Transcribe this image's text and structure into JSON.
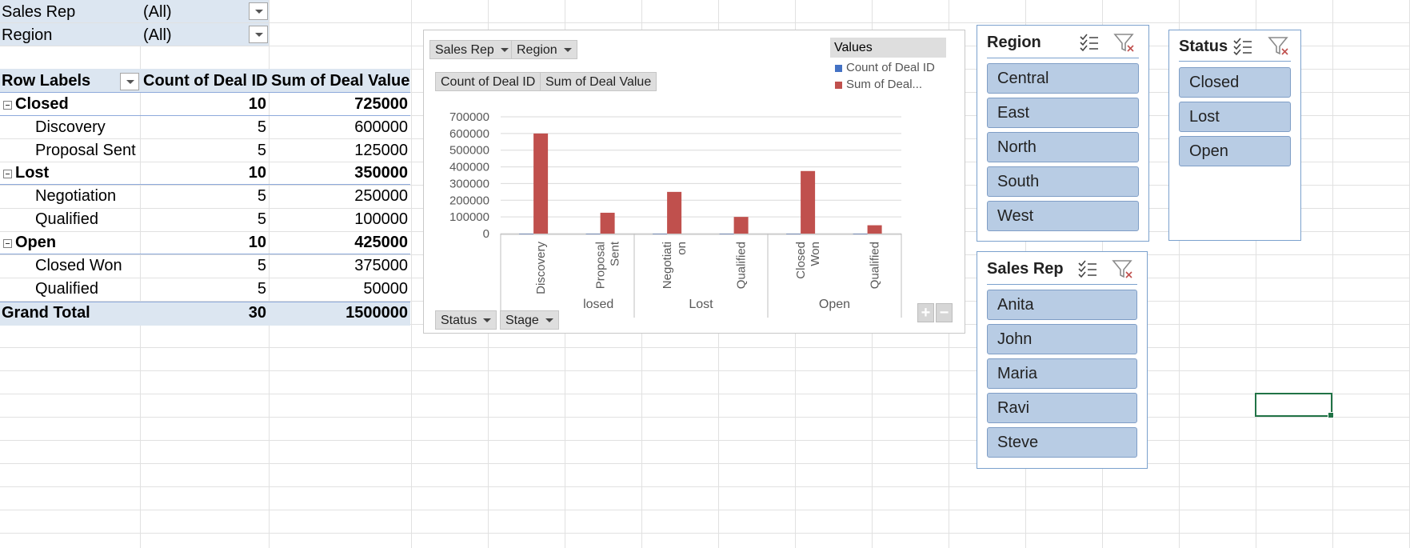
{
  "pivot": {
    "filters": [
      {
        "field": "Sales Rep",
        "value": "(All)"
      },
      {
        "field": "Region",
        "value": "(All)"
      }
    ],
    "headers": {
      "rows": "Row Labels",
      "count": "Count of Deal ID",
      "sum": "Sum of Deal Value"
    },
    "groups": [
      {
        "label": "Closed",
        "count": "10",
        "sum": "725000",
        "items": [
          {
            "label": "Discovery",
            "count": "5",
            "sum": "600000"
          },
          {
            "label": "Proposal Sent",
            "count": "5",
            "sum": "125000"
          }
        ]
      },
      {
        "label": "Lost",
        "count": "10",
        "sum": "350000",
        "items": [
          {
            "label": "Negotiation",
            "count": "5",
            "sum": "250000"
          },
          {
            "label": "Qualified",
            "count": "5",
            "sum": "100000"
          }
        ]
      },
      {
        "label": "Open",
        "count": "10",
        "sum": "425000",
        "items": [
          {
            "label": "Closed Won",
            "count": "5",
            "sum": "375000"
          },
          {
            "label": "Qualified",
            "count": "5",
            "sum": "50000"
          }
        ]
      }
    ],
    "grand_total": {
      "label": "Grand Total",
      "count": "30",
      "sum": "1500000"
    }
  },
  "pivot_chart": {
    "filter_buttons": {
      "sales_rep": "Sales Rep",
      "region": "Region"
    },
    "value_buttons": {
      "count": "Count of Deal ID",
      "sum": "Sum of Deal Value"
    },
    "axis_buttons": {
      "status": "Status",
      "stage": "Stage"
    },
    "legend": {
      "header": "Values",
      "count": "Count of Deal ID",
      "sum": "Sum of Deal..."
    },
    "count_color": "#4472c4",
    "sum_color": "#c0504d",
    "zoom": {
      "plus": "+",
      "minus": "−"
    }
  },
  "chart_data": {
    "type": "bar",
    "categories": [
      {
        "group": "Closed",
        "label": "Discovery"
      },
      {
        "group": "Closed",
        "label": "Proposal Sent"
      },
      {
        "group": "Lost",
        "label": "Negotiation"
      },
      {
        "group": "Lost",
        "label": "Qualified"
      },
      {
        "group": "Open",
        "label": "Closed Won"
      },
      {
        "group": "Open",
        "label": "Qualified"
      }
    ],
    "tick_labels": [
      [
        "Discovery"
      ],
      [
        "Proposal",
        "Sent"
      ],
      [
        "Negotiati",
        "on"
      ],
      [
        "Qualified"
      ],
      [
        "Closed",
        "Won"
      ],
      [
        "Qualified"
      ]
    ],
    "group_labels": [
      "losed",
      "Lost",
      "Open"
    ],
    "series": [
      {
        "name": "Count of Deal ID",
        "values": [
          5,
          5,
          5,
          5,
          5,
          5
        ]
      },
      {
        "name": "Sum of Deal...",
        "values": [
          600000,
          125000,
          250000,
          100000,
          375000,
          50000
        ]
      }
    ],
    "ylim": [
      0,
      700000
    ],
    "yticks": [
      "0",
      "100000",
      "200000",
      "300000",
      "400000",
      "500000",
      "600000",
      "700000"
    ],
    "grid": true,
    "legend_position": "top-right"
  },
  "slicers": {
    "region": {
      "title": "Region",
      "items": [
        "Central",
        "East",
        "North",
        "South",
        "West"
      ]
    },
    "status": {
      "title": "Status",
      "items": [
        "Closed",
        "Lost",
        "Open"
      ]
    },
    "sales_rep": {
      "title": "Sales Rep",
      "items": [
        "Anita",
        "John",
        "Maria",
        "Ravi",
        "Steve"
      ]
    },
    "icons": {
      "multi_select": "multi-select-icon",
      "clear_filter": "clear-filter-icon"
    }
  }
}
